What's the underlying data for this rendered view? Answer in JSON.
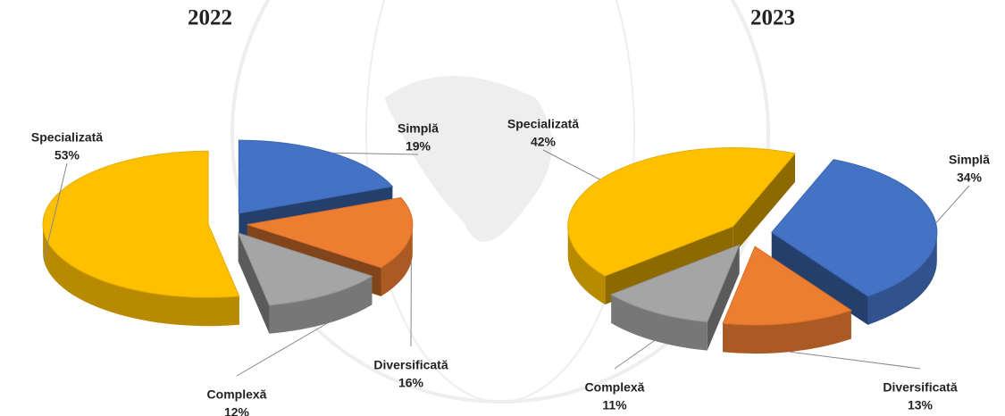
{
  "chart_data": [
    {
      "type": "pie",
      "title": "2022",
      "categories": [
        "Simplă",
        "Diversificată",
        "Complexă",
        "Specializată"
      ],
      "values": [
        19,
        16,
        12,
        53
      ],
      "value_labels": [
        "19%",
        "16%",
        "12%",
        "53%"
      ],
      "colors": [
        "#4472c4",
        "#ed7d31",
        "#a5a5a5",
        "#ffc000"
      ]
    },
    {
      "type": "pie",
      "title": "2023",
      "categories": [
        "Simplă",
        "Diversificată",
        "Complexă",
        "Specializată"
      ],
      "values": [
        34,
        13,
        11,
        42
      ],
      "value_labels": [
        "34%",
        "13%",
        "11%",
        "42%"
      ],
      "colors": [
        "#4472c4",
        "#ed7d31",
        "#a5a5a5",
        "#ffc000"
      ]
    }
  ]
}
